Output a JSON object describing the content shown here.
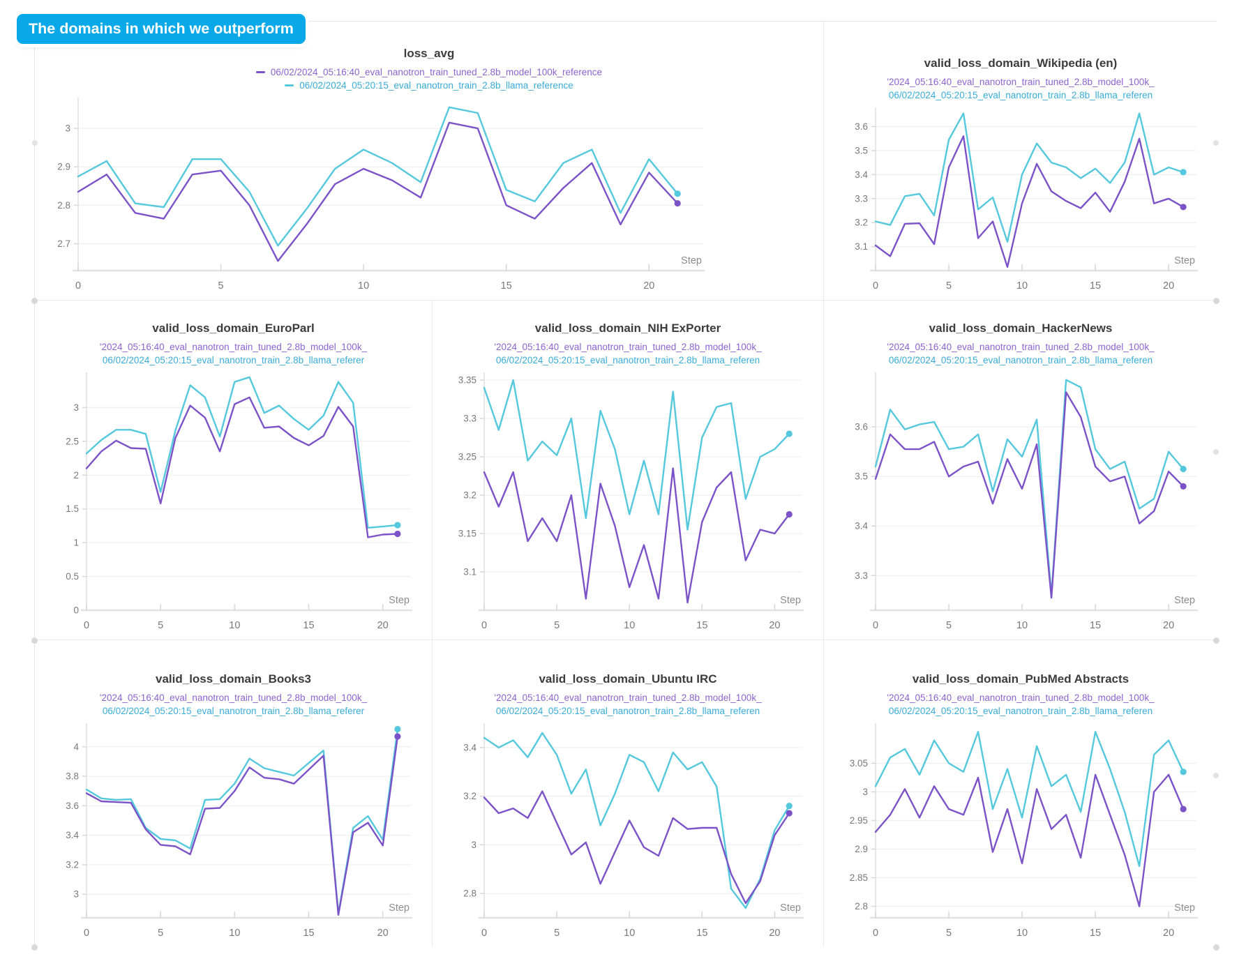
{
  "badge": {
    "label": "The domains in which we outperform",
    "color": "#09a9e9"
  },
  "series_colors": {
    "tuned": "#7b52c7",
    "llama": "#54c8dc"
  },
  "runs": {
    "tuned_full_name": "06/02/2024_05:16:40_eval_nanotron_train_tuned_2.8b_model_100k_reference",
    "llama_full_name": "06/02/2024_05:20:15_eval_nanotron_train_2.8b_llama_reference"
  },
  "chart_data": [
    {
      "type": "line",
      "title": "loss_avg",
      "wide": true,
      "legend_markers": true,
      "legend": [
        "06/02/2024_05:16:40_eval_nanotron_train_tuned_2.8b_model_100k_reference",
        "06/02/2024_05:20:15_eval_nanotron_train_2.8b_llama_reference"
      ],
      "xlabel": "Step",
      "x_ticks": [
        0,
        5,
        10,
        15,
        20
      ],
      "y_ticks": [
        2.7,
        2.8,
        2.9,
        3
      ],
      "y_domain": [
        2.63,
        3.08
      ],
      "series": [
        {
          "name": "tuned",
          "color_key": "tuned",
          "values": [
            2.835,
            2.88,
            2.78,
            2.765,
            2.88,
            2.89,
            2.8,
            2.655,
            2.75,
            2.855,
            2.895,
            2.865,
            2.82,
            3.015,
            3.0,
            2.8,
            2.765,
            2.845,
            2.91,
            2.75,
            2.885,
            2.805
          ]
        },
        {
          "name": "llama",
          "color_key": "llama",
          "values": [
            2.875,
            2.915,
            2.805,
            2.795,
            2.92,
            2.92,
            2.835,
            2.695,
            2.79,
            2.895,
            2.945,
            2.91,
            2.86,
            3.055,
            3.04,
            2.84,
            2.81,
            2.91,
            2.945,
            2.78,
            2.92,
            2.83
          ]
        }
      ]
    },
    {
      "type": "line",
      "title": "valid_loss_domain_Wikipedia (en)",
      "wide": false,
      "legend_markers": false,
      "legend": [
        "'2024_05:16:40_eval_nanotron_train_tuned_2.8b_model_100k_",
        "06/02/2024_05:20:15_eval_nanotron_train_2.8b_llama_referen"
      ],
      "xlabel": "Step",
      "x_ticks": [
        0,
        5,
        10,
        15,
        20
      ],
      "y_ticks": [
        3.1,
        3.2,
        3.3,
        3.4,
        3.5,
        3.6
      ],
      "y_domain": [
        3.0,
        3.68
      ],
      "series": [
        {
          "name": "tuned",
          "color_key": "tuned",
          "values": [
            3.105,
            3.06,
            3.195,
            3.197,
            3.11,
            3.43,
            3.56,
            3.135,
            3.205,
            3.015,
            3.28,
            3.445,
            3.33,
            3.29,
            3.26,
            3.325,
            3.245,
            3.37,
            3.55,
            3.28,
            3.3,
            3.265
          ]
        },
        {
          "name": "llama",
          "color_key": "llama",
          "values": [
            3.205,
            3.19,
            3.31,
            3.32,
            3.23,
            3.545,
            3.655,
            3.255,
            3.305,
            3.12,
            3.4,
            3.53,
            3.45,
            3.43,
            3.385,
            3.425,
            3.365,
            3.45,
            3.655,
            3.4,
            3.43,
            3.41
          ]
        }
      ]
    },
    {
      "type": "line",
      "title": "valid_loss_domain_EuroParl",
      "wide": false,
      "legend_markers": false,
      "legend": [
        "'2024_05:16:40_eval_nanotron_train_tuned_2.8b_model_100k_",
        "06/02/2024_05:20:15_eval_nanotron_train_2.8b_llama_referer"
      ],
      "xlabel": "Step",
      "x_ticks": [
        0,
        5,
        10,
        15,
        20
      ],
      "y_ticks": [
        0,
        0.5,
        1,
        1.5,
        2,
        2.5,
        3
      ],
      "y_domain": [
        0,
        3.52
      ],
      "series": [
        {
          "name": "tuned",
          "color_key": "tuned",
          "values": [
            2.1,
            2.35,
            2.51,
            2.4,
            2.39,
            1.58,
            2.55,
            3.03,
            2.85,
            2.35,
            3.05,
            3.15,
            2.7,
            2.72,
            2.55,
            2.44,
            2.58,
            3.01,
            2.72,
            1.08,
            1.12,
            1.13
          ]
        },
        {
          "name": "llama",
          "color_key": "llama",
          "values": [
            2.32,
            2.52,
            2.67,
            2.67,
            2.61,
            1.75,
            2.66,
            3.33,
            3.15,
            2.57,
            3.38,
            3.45,
            2.92,
            3.03,
            2.83,
            2.67,
            2.88,
            3.38,
            3.07,
            1.22,
            1.24,
            1.26
          ]
        }
      ]
    },
    {
      "type": "line",
      "title": "valid_loss_domain_NIH ExPorter",
      "wide": false,
      "legend_markers": false,
      "legend": [
        "'2024_05:16:40_eval_nanotron_train_tuned_2.8b_model_100k_",
        "06/02/2024_05:20:15_eval_nanotron_train_2.8b_llama_referen"
      ],
      "xlabel": "Step",
      "x_ticks": [
        0,
        5,
        10,
        15,
        20
      ],
      "y_ticks": [
        3.1,
        3.15,
        3.2,
        3.25,
        3.3,
        3.35
      ],
      "y_domain": [
        3.05,
        3.36
      ],
      "series": [
        {
          "name": "tuned",
          "color_key": "tuned",
          "values": [
            3.23,
            3.185,
            3.23,
            3.14,
            3.17,
            3.14,
            3.2,
            3.065,
            3.215,
            3.16,
            3.08,
            3.135,
            3.065,
            3.235,
            3.06,
            3.165,
            3.21,
            3.23,
            3.115,
            3.155,
            3.15,
            3.175
          ]
        },
        {
          "name": "llama",
          "color_key": "llama",
          "values": [
            3.34,
            3.285,
            3.35,
            3.245,
            3.27,
            3.252,
            3.3,
            3.17,
            3.31,
            3.26,
            3.175,
            3.245,
            3.175,
            3.335,
            3.155,
            3.275,
            3.315,
            3.32,
            3.195,
            3.25,
            3.26,
            3.28
          ]
        }
      ]
    },
    {
      "type": "line",
      "title": "valid_loss_domain_HackerNews",
      "wide": false,
      "legend_markers": false,
      "legend": [
        "'2024_05:16:40_eval_nanotron_train_tuned_2.8b_model_100k_",
        "06/02/2024_05:20:15_eval_nanotron_train_2.8b_llama_referen"
      ],
      "xlabel": "Step",
      "x_ticks": [
        0,
        5,
        10,
        15,
        20
      ],
      "y_ticks": [
        3.3,
        3.4,
        3.5,
        3.6
      ],
      "y_domain": [
        3.23,
        3.71
      ],
      "series": [
        {
          "name": "tuned",
          "color_key": "tuned",
          "values": [
            3.495,
            3.585,
            3.555,
            3.555,
            3.57,
            3.5,
            3.52,
            3.53,
            3.445,
            3.535,
            3.475,
            3.565,
            3.255,
            3.67,
            3.62,
            3.52,
            3.49,
            3.5,
            3.405,
            3.43,
            3.51,
            3.48
          ]
        },
        {
          "name": "llama",
          "color_key": "llama",
          "values": [
            3.52,
            3.635,
            3.595,
            3.605,
            3.61,
            3.555,
            3.56,
            3.585,
            3.47,
            3.575,
            3.54,
            3.615,
            3.26,
            3.695,
            3.68,
            3.555,
            3.515,
            3.53,
            3.435,
            3.455,
            3.55,
            3.515
          ]
        }
      ]
    },
    {
      "type": "line",
      "title": "valid_loss_domain_Books3",
      "wide": false,
      "legend_markers": false,
      "legend": [
        "'2024_05:16:40_eval_nanotron_train_tuned_2.8b_model_100k_",
        "06/02/2024_05:20:15_eval_nanotron_train_2.8b_llama_referer"
      ],
      "xlabel": "Step",
      "x_ticks": [
        0,
        5,
        10,
        15,
        20
      ],
      "y_ticks": [
        3,
        3.2,
        3.4,
        3.6,
        3.8,
        4
      ],
      "y_domain": [
        2.84,
        4.16
      ],
      "series": [
        {
          "name": "tuned",
          "color_key": "tuned",
          "values": [
            3.685,
            3.63,
            3.625,
            3.62,
            3.44,
            3.335,
            3.325,
            3.27,
            3.58,
            3.585,
            3.7,
            3.86,
            3.79,
            3.78,
            3.75,
            3.845,
            3.94,
            2.86,
            3.42,
            3.485,
            3.33,
            4.07
          ]
        },
        {
          "name": "llama",
          "color_key": "llama",
          "values": [
            3.71,
            3.65,
            3.64,
            3.645,
            3.45,
            3.375,
            3.365,
            3.31,
            3.64,
            3.645,
            3.75,
            3.92,
            3.855,
            3.83,
            3.805,
            3.89,
            3.975,
            2.87,
            3.45,
            3.53,
            3.37,
            4.12
          ]
        }
      ]
    },
    {
      "type": "line",
      "title": "valid_loss_domain_Ubuntu IRC",
      "wide": false,
      "legend_markers": false,
      "legend": [
        "'2024_05:16:40_eval_nanotron_train_tuned_2.8b_model_100k_",
        "06/02/2024_05:20:15_eval_nanotron_train_2.8b_llama_referen"
      ],
      "xlabel": "Step",
      "x_ticks": [
        0,
        5,
        10,
        15,
        20
      ],
      "y_ticks": [
        2.8,
        3,
        3.2,
        3.4
      ],
      "y_domain": [
        2.7,
        3.5
      ],
      "series": [
        {
          "name": "tuned",
          "color_key": "tuned",
          "values": [
            3.195,
            3.13,
            3.15,
            3.11,
            3.22,
            3.09,
            2.96,
            3.01,
            2.84,
            2.97,
            3.1,
            2.99,
            2.955,
            3.11,
            3.065,
            3.07,
            3.07,
            2.88,
            2.76,
            2.85,
            3.04,
            3.13
          ]
        },
        {
          "name": "llama",
          "color_key": "llama",
          "values": [
            3.44,
            3.4,
            3.43,
            3.36,
            3.46,
            3.37,
            3.21,
            3.31,
            3.08,
            3.21,
            3.37,
            3.34,
            3.22,
            3.38,
            3.31,
            3.34,
            3.24,
            2.82,
            2.74,
            2.86,
            3.06,
            3.16
          ]
        }
      ]
    },
    {
      "type": "line",
      "title": "valid_loss_domain_PubMed Abstracts",
      "wide": false,
      "legend_markers": false,
      "legend": [
        "'2024_05:16:40_eval_nanotron_train_tuned_2.8b_model_100k_",
        "06/02/2024_05:20:15_eval_nanotron_train_2.8b_llama_referen"
      ],
      "xlabel": "Step",
      "x_ticks": [
        0,
        5,
        10,
        15,
        20
      ],
      "y_ticks": [
        2.8,
        2.85,
        2.9,
        2.95,
        3,
        3.05
      ],
      "y_domain": [
        2.78,
        3.12
      ],
      "series": [
        {
          "name": "tuned",
          "color_key": "tuned",
          "values": [
            2.93,
            2.96,
            3.005,
            2.955,
            3.01,
            2.97,
            2.96,
            3.025,
            2.895,
            2.97,
            2.875,
            3.005,
            2.935,
            2.96,
            2.885,
            3.03,
            2.96,
            2.89,
            2.8,
            3.0,
            3.03,
            2.97
          ]
        },
        {
          "name": "llama",
          "color_key": "llama",
          "values": [
            3.01,
            3.06,
            3.075,
            3.03,
            3.09,
            3.05,
            3.035,
            3.105,
            2.97,
            3.04,
            2.955,
            3.08,
            3.01,
            3.03,
            2.965,
            3.105,
            3.04,
            2.965,
            2.87,
            3.065,
            3.09,
            3.035
          ]
        }
      ]
    }
  ]
}
